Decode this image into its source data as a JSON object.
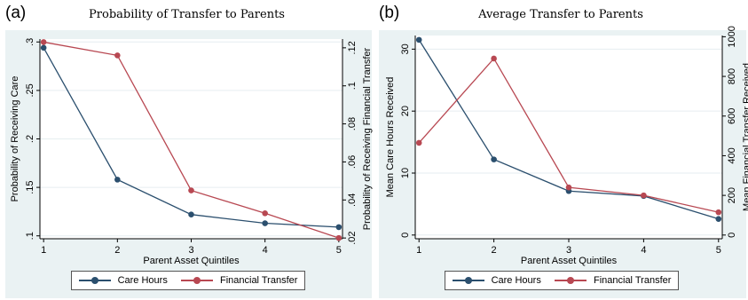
{
  "colors": {
    "care": "#2b4f6e",
    "financial": "#b84852",
    "frame": "#eaf2f3",
    "plot": "#ffffff",
    "grid": "#e6eef0"
  },
  "chart_data": [
    {
      "panel_label": "(a)",
      "type": "line",
      "title": "Probability of Transfer to Parents",
      "xlabel": "Parent Asset Quintiles",
      "ylabel": "Probability of Receiving Care",
      "y2label": "Probability of Receiving Financial Transfer",
      "x": [
        1,
        2,
        3,
        4,
        5
      ],
      "x_ticks": [
        "1",
        "2",
        "3",
        "4",
        "5"
      ],
      "xlim": [
        0.95,
        5.05
      ],
      "ylim": [
        0.097,
        0.303
      ],
      "y_ticks": [
        0.1,
        0.15,
        0.2,
        0.25,
        0.3
      ],
      "y_tick_labels": [
        ".1",
        ".15",
        ".2",
        ".25",
        ".3"
      ],
      "y2lim": [
        0.0196,
        0.1246
      ],
      "y2_ticks": [
        0.02,
        0.04,
        0.06,
        0.08,
        0.1,
        0.12
      ],
      "y2_tick_labels": [
        ".02",
        ".04",
        ".06",
        ".08",
        ".1",
        ".12"
      ],
      "series": [
        {
          "name": "Care Hours",
          "axis": "left",
          "values": [
            0.294,
            0.158,
            0.122,
            0.113,
            0.109
          ]
        },
        {
          "name": "Financial Transfer",
          "axis": "right",
          "values": [
            0.123,
            0.116,
            0.045,
            0.033,
            0.02
          ]
        }
      ],
      "legend": "bottom",
      "grid": true
    },
    {
      "panel_label": "(b)",
      "type": "line",
      "title": "Average Transfer to Parents",
      "xlabel": "Parent Asset Quintiles",
      "ylabel": "Mean Care Hours Received",
      "y2label": "Mean Financial Transfer Received",
      "x": [
        1,
        2,
        3,
        4,
        5
      ],
      "x_ticks": [
        "1",
        "2",
        "3",
        "4",
        "5"
      ],
      "xlim": [
        0.95,
        5.05
      ],
      "ylim": [
        -0.6,
        32.2
      ],
      "y_ticks": [
        0,
        10,
        20,
        30
      ],
      "y_tick_labels": [
        "0",
        "10",
        "20",
        "30"
      ],
      "y2lim": [
        -18.75,
        1006.25
      ],
      "y2_ticks": [
        0,
        200,
        400,
        600,
        800,
        1000
      ],
      "y2_tick_labels": [
        "0",
        "200",
        "400",
        "600",
        "800",
        "1000"
      ],
      "series": [
        {
          "name": "Care Hours",
          "axis": "left",
          "values": [
            31.5,
            12.2,
            7.1,
            6.3,
            2.6
          ]
        },
        {
          "name": "Financial Transfer",
          "axis": "right",
          "values": [
            465,
            890,
            240,
            200,
            115
          ]
        }
      ],
      "legend": "bottom",
      "grid": true
    }
  ]
}
